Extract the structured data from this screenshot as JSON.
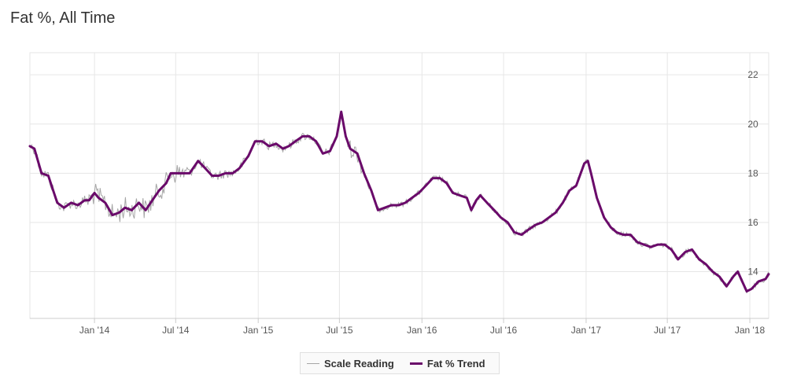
{
  "page": {
    "title": "Fat %, All Time"
  },
  "colors": {
    "scale": "#a6a6a6",
    "trend": "#6a0a6a",
    "grid": "#e6e6e6",
    "axis": "#cccccc"
  },
  "chart_data": {
    "type": "line",
    "title": "Fat %, All Time",
    "xlabel": "",
    "ylabel": "",
    "x_range": [
      "2013-08-10",
      "2018-02-12"
    ],
    "ylim": [
      12.1,
      22.9
    ],
    "y_ticks": [
      14,
      16,
      18,
      20,
      22
    ],
    "x_ticks": [
      {
        "date": "2014-01-01",
        "label": "Jan '14"
      },
      {
        "date": "2014-07-01",
        "label": "Jul '14"
      },
      {
        "date": "2015-01-01",
        "label": "Jan '15"
      },
      {
        "date": "2015-07-01",
        "label": "Jul '15"
      },
      {
        "date": "2016-01-01",
        "label": "Jan '16"
      },
      {
        "date": "2016-07-01",
        "label": "Jul '16"
      },
      {
        "date": "2017-01-01",
        "label": "Jan '17"
      },
      {
        "date": "2017-07-01",
        "label": "Jul '17"
      },
      {
        "date": "2018-01-01",
        "label": "Jan '18"
      }
    ],
    "grid": true,
    "legend": "bottom-center",
    "series": [
      {
        "name": "Fat % Trend",
        "style": "thick",
        "points": [
          [
            "2013-08-10",
            19.1
          ],
          [
            "2013-08-20",
            19.0
          ],
          [
            "2013-09-05",
            18.0
          ],
          [
            "2013-09-20",
            17.9
          ],
          [
            "2013-10-01",
            17.3
          ],
          [
            "2013-10-10",
            16.8
          ],
          [
            "2013-10-25",
            16.6
          ],
          [
            "2013-11-10",
            16.8
          ],
          [
            "2013-11-25",
            16.7
          ],
          [
            "2013-12-10",
            16.9
          ],
          [
            "2013-12-20",
            16.9
          ],
          [
            "2014-01-01",
            17.2
          ],
          [
            "2014-01-10",
            17.0
          ],
          [
            "2014-01-25",
            16.8
          ],
          [
            "2014-02-10",
            16.3
          ],
          [
            "2014-02-25",
            16.4
          ],
          [
            "2014-03-10",
            16.6
          ],
          [
            "2014-03-25",
            16.5
          ],
          [
            "2014-04-10",
            16.8
          ],
          [
            "2014-04-25",
            16.5
          ],
          [
            "2014-05-10",
            16.9
          ],
          [
            "2014-05-25",
            17.3
          ],
          [
            "2014-06-10",
            17.6
          ],
          [
            "2014-06-20",
            18.0
          ],
          [
            "2014-07-15",
            18.0
          ],
          [
            "2014-08-01",
            18.0
          ],
          [
            "2014-08-20",
            18.5
          ],
          [
            "2014-09-05",
            18.2
          ],
          [
            "2014-09-20",
            17.9
          ],
          [
            "2014-10-05",
            17.9
          ],
          [
            "2014-10-20",
            18.0
          ],
          [
            "2014-11-05",
            18.0
          ],
          [
            "2014-11-20",
            18.2
          ],
          [
            "2014-12-10",
            18.7
          ],
          [
            "2014-12-25",
            19.3
          ],
          [
            "2015-01-10",
            19.3
          ],
          [
            "2015-01-25",
            19.1
          ],
          [
            "2015-02-10",
            19.2
          ],
          [
            "2015-02-25",
            19.0
          ],
          [
            "2015-03-10",
            19.1
          ],
          [
            "2015-03-25",
            19.3
          ],
          [
            "2015-04-10",
            19.5
          ],
          [
            "2015-04-25",
            19.5
          ],
          [
            "2015-05-10",
            19.3
          ],
          [
            "2015-05-25",
            18.8
          ],
          [
            "2015-06-10",
            18.9
          ],
          [
            "2015-06-25",
            19.5
          ],
          [
            "2015-07-05",
            20.5
          ],
          [
            "2015-07-15",
            19.5
          ],
          [
            "2015-07-25",
            19.0
          ],
          [
            "2015-08-10",
            18.8
          ],
          [
            "2015-08-25",
            18.0
          ],
          [
            "2015-09-10",
            17.3
          ],
          [
            "2015-09-25",
            16.5
          ],
          [
            "2015-10-10",
            16.6
          ],
          [
            "2015-10-25",
            16.7
          ],
          [
            "2015-11-10",
            16.7
          ],
          [
            "2015-11-25",
            16.8
          ],
          [
            "2015-12-10",
            17.0
          ],
          [
            "2015-12-25",
            17.2
          ],
          [
            "2016-01-10",
            17.5
          ],
          [
            "2016-01-25",
            17.8
          ],
          [
            "2016-02-10",
            17.8
          ],
          [
            "2016-02-25",
            17.6
          ],
          [
            "2016-03-10",
            17.2
          ],
          [
            "2016-03-25",
            17.1
          ],
          [
            "2016-04-10",
            17.0
          ],
          [
            "2016-04-20",
            16.5
          ],
          [
            "2016-05-01",
            16.9
          ],
          [
            "2016-05-10",
            17.1
          ],
          [
            "2016-05-25",
            16.8
          ],
          [
            "2016-06-10",
            16.5
          ],
          [
            "2016-06-25",
            16.2
          ],
          [
            "2016-07-10",
            16.0
          ],
          [
            "2016-07-25",
            15.6
          ],
          [
            "2016-08-10",
            15.5
          ],
          [
            "2016-08-25",
            15.7
          ],
          [
            "2016-09-10",
            15.9
          ],
          [
            "2016-09-25",
            16.0
          ],
          [
            "2016-10-10",
            16.2
          ],
          [
            "2016-10-25",
            16.4
          ],
          [
            "2016-11-10",
            16.8
          ],
          [
            "2016-11-25",
            17.3
          ],
          [
            "2016-12-10",
            17.5
          ],
          [
            "2016-12-20",
            18.0
          ],
          [
            "2016-12-28",
            18.4
          ],
          [
            "2017-01-05",
            18.5
          ],
          [
            "2017-01-12",
            18.0
          ],
          [
            "2017-01-25",
            17.0
          ],
          [
            "2017-02-10",
            16.2
          ],
          [
            "2017-02-25",
            15.8
          ],
          [
            "2017-03-10",
            15.6
          ],
          [
            "2017-03-25",
            15.5
          ],
          [
            "2017-04-10",
            15.5
          ],
          [
            "2017-04-25",
            15.2
          ],
          [
            "2017-05-10",
            15.1
          ],
          [
            "2017-05-25",
            15.0
          ],
          [
            "2017-06-10",
            15.1
          ],
          [
            "2017-06-25",
            15.1
          ],
          [
            "2017-07-10",
            14.9
          ],
          [
            "2017-07-25",
            14.5
          ],
          [
            "2017-08-10",
            14.8
          ],
          [
            "2017-08-25",
            14.9
          ],
          [
            "2017-09-10",
            14.5
          ],
          [
            "2017-09-25",
            14.3
          ],
          [
            "2017-10-10",
            14.0
          ],
          [
            "2017-10-25",
            13.8
          ],
          [
            "2017-11-10",
            13.4
          ],
          [
            "2017-11-25",
            13.8
          ],
          [
            "2017-12-05",
            14.0
          ],
          [
            "2017-12-15",
            13.6
          ],
          [
            "2017-12-25",
            13.2
          ],
          [
            "2018-01-05",
            13.3
          ],
          [
            "2018-01-20",
            13.6
          ],
          [
            "2018-02-05",
            13.7
          ],
          [
            "2018-02-12",
            13.9
          ]
        ]
      },
      {
        "name": "Scale Reading",
        "style": "thin",
        "noise": true
      }
    ]
  }
}
